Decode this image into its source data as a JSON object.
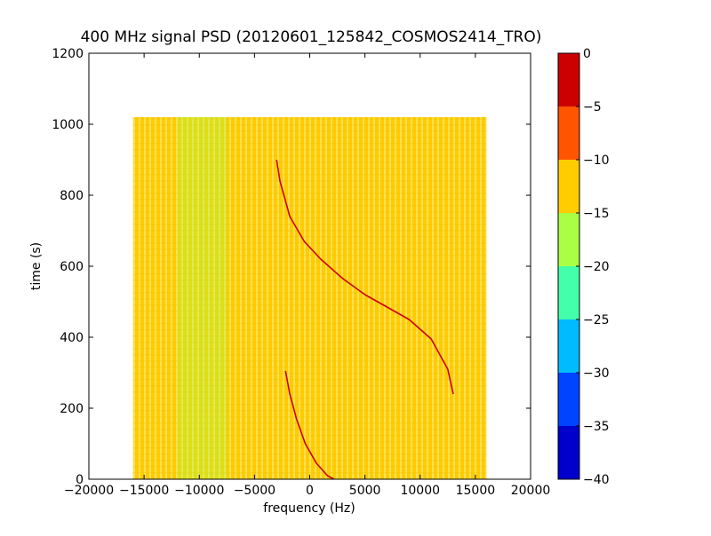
{
  "chart_data": {
    "type": "heatmap",
    "title": "400 MHz signal PSD (20120601_125842_COSMOS2414_TRO)",
    "xlabel": "frequency (Hz)",
    "ylabel": "time (s)",
    "xlim": [
      -20000,
      20000
    ],
    "ylim": [
      0,
      1200
    ],
    "x_ticks": [
      -20000,
      -15000,
      -10000,
      -5000,
      0,
      5000,
      10000,
      15000,
      20000
    ],
    "x_tick_labels": [
      "−20000",
      "−15000",
      "−10000",
      "−5000",
      "0",
      "5000",
      "10000",
      "15000",
      "20000"
    ],
    "y_ticks": [
      0,
      200,
      400,
      600,
      800,
      1000,
      1200
    ],
    "y_tick_labels": [
      "0",
      "200",
      "400",
      "600",
      "800",
      "1000",
      "1200"
    ],
    "data_extent": {
      "x": [
        -16000,
        16000
      ],
      "y": [
        0,
        1020
      ]
    },
    "background_level": -12,
    "low_level_band": {
      "x": [
        -12000,
        -7500
      ],
      "level": -15
    },
    "signal_traces": [
      {
        "name": "",
        "points": [
          [
            -3000,
            900
          ],
          [
            -2700,
            840
          ],
          [
            -1800,
            740
          ],
          [
            -500,
            670
          ],
          [
            1000,
            620
          ],
          [
            3000,
            565
          ],
          [
            5000,
            520
          ],
          [
            7000,
            485
          ],
          [
            9000,
            450
          ],
          [
            11000,
            395
          ],
          [
            12500,
            310
          ],
          [
            13000,
            240
          ]
        ]
      },
      {
        "name": "",
        "points": [
          [
            -2200,
            305
          ],
          [
            -1800,
            240
          ],
          [
            -1200,
            170
          ],
          [
            -400,
            100
          ],
          [
            600,
            45
          ],
          [
            1600,
            10
          ],
          [
            2200,
            0
          ]
        ]
      }
    ],
    "colorbar": {
      "range": [
        -40,
        0
      ],
      "tick_values": [
        0,
        -5,
        -10,
        -15,
        -20,
        -25,
        -30,
        -35,
        -40
      ],
      "tick_labels": [
        "0",
        "−5",
        "−10",
        "−15",
        "−20",
        "−25",
        "−30",
        "−35",
        "−40"
      ],
      "bins": [
        {
          "from": -40,
          "to": -35,
          "color": "#0000cc"
        },
        {
          "from": -35,
          "to": -30,
          "color": "#0044ff"
        },
        {
          "from": -30,
          "to": -25,
          "color": "#00bbff"
        },
        {
          "from": -25,
          "to": -20,
          "color": "#44ffaa"
        },
        {
          "from": -20,
          "to": -15,
          "color": "#aaff44"
        },
        {
          "from": -15,
          "to": -10,
          "color": "#ffcc00"
        },
        {
          "from": -10,
          "to": -5,
          "color": "#ff5500"
        },
        {
          "from": -5,
          "to": 0,
          "color": "#cc0000"
        }
      ]
    },
    "trace_color": "#cc0000"
  }
}
